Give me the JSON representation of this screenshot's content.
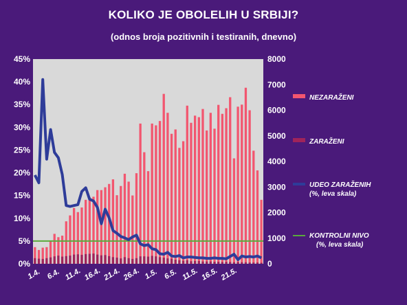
{
  "chart_data": {
    "type": "bar",
    "title": "KOLIKO JE OBOLELIH U SRBIJI?",
    "subtitle": "(odnos broja pozitivnih i testiranih, dnevno)",
    "x_tick_labels": [
      "1.4.",
      "6.4.",
      "11.4.",
      "16.4.",
      "21.4.",
      "26.4.",
      "1.5.",
      "6.5.",
      "11.5.",
      "16.5.",
      "21.5."
    ],
    "y_left_ticks": [
      "0%",
      "5%",
      "10%",
      "15%",
      "20%",
      "25%",
      "30%",
      "35%",
      "40%",
      "45%"
    ],
    "y_right_ticks": [
      "0",
      "1000",
      "2000",
      "3000",
      "4000",
      "5000",
      "6000",
      "7000",
      "8000"
    ],
    "y_left_range": [
      0,
      45
    ],
    "y_right_range": [
      0,
      8000
    ],
    "series": [
      {
        "name": "NEZARAŽENI",
        "axis": "right",
        "type": "bar",
        "color": "#f2566f",
        "values": [
          650,
          540,
          630,
          650,
          900,
          1170,
          1040,
          1100,
          1660,
          1890,
          2180,
          2020,
          2200,
          2500,
          2590,
          2620,
          2880,
          2880,
          2990,
          3120,
          3300,
          2680,
          3040,
          3520,
          3210,
          2670,
          3540,
          5480,
          4360,
          3620,
          5480,
          5410,
          5580,
          6640,
          5900,
          5080,
          5250,
          4530,
          4790,
          6180,
          5510,
          5790,
          5730,
          6050,
          5210,
          5900,
          5280,
          6210,
          5860,
          6080,
          6510,
          4120,
          6140,
          6220,
          6880,
          6000,
          4420,
          3650,
          2500
        ]
      },
      {
        "name": "ZARAŽENI",
        "axis": "right",
        "type": "bar",
        "color": "#a0245a",
        "values": [
          220,
          200,
          190,
          220,
          250,
          290,
          320,
          280,
          300,
          320,
          360,
          370,
          350,
          380,
          390,
          400,
          360,
          330,
          340,
          300,
          260,
          240,
          210,
          260,
          220,
          190,
          220,
          290,
          290,
          280,
          310,
          290,
          260,
          240,
          210,
          200,
          160,
          140,
          120,
          140,
          100,
          110,
          110,
          90,
          90,
          90,
          80,
          80,
          70,
          80,
          70,
          60,
          70,
          60,
          60,
          50,
          50,
          50,
          40
        ]
      },
      {
        "name": "UDEO ZARAŽENIH",
        "name_note": "(%, leva skala)",
        "axis": "left",
        "type": "line",
        "color": "#2e3c99",
        "values": [
          19.5,
          17.8,
          40.5,
          23.0,
          29.5,
          24.5,
          23.3,
          19.6,
          12.8,
          12.6,
          12.8,
          13.0,
          15.9,
          16.7,
          14.2,
          13.8,
          12.4,
          8.8,
          12.0,
          10.1,
          7.3,
          6.7,
          6.0,
          5.7,
          5.3,
          5.9,
          6.3,
          4.4,
          4.0,
          4.2,
          3.3,
          3.1,
          2.2,
          2.1,
          2.5,
          1.7,
          1.6,
          1.8,
          1.3,
          1.5,
          1.5,
          1.4,
          1.3,
          1.3,
          1.2,
          1.2,
          1.3,
          1.2,
          1.2,
          1.1,
          1.6,
          2.1,
          0.9,
          1.7,
          1.5,
          1.6,
          1.5,
          1.7,
          1.3
        ]
      },
      {
        "name": "KONTROLNI NIVO",
        "name_note": "(%, leva skala)",
        "axis": "left",
        "type": "hline",
        "color": "#5aaa3c",
        "value": 5
      }
    ],
    "grid": false,
    "legend_position": "right"
  }
}
